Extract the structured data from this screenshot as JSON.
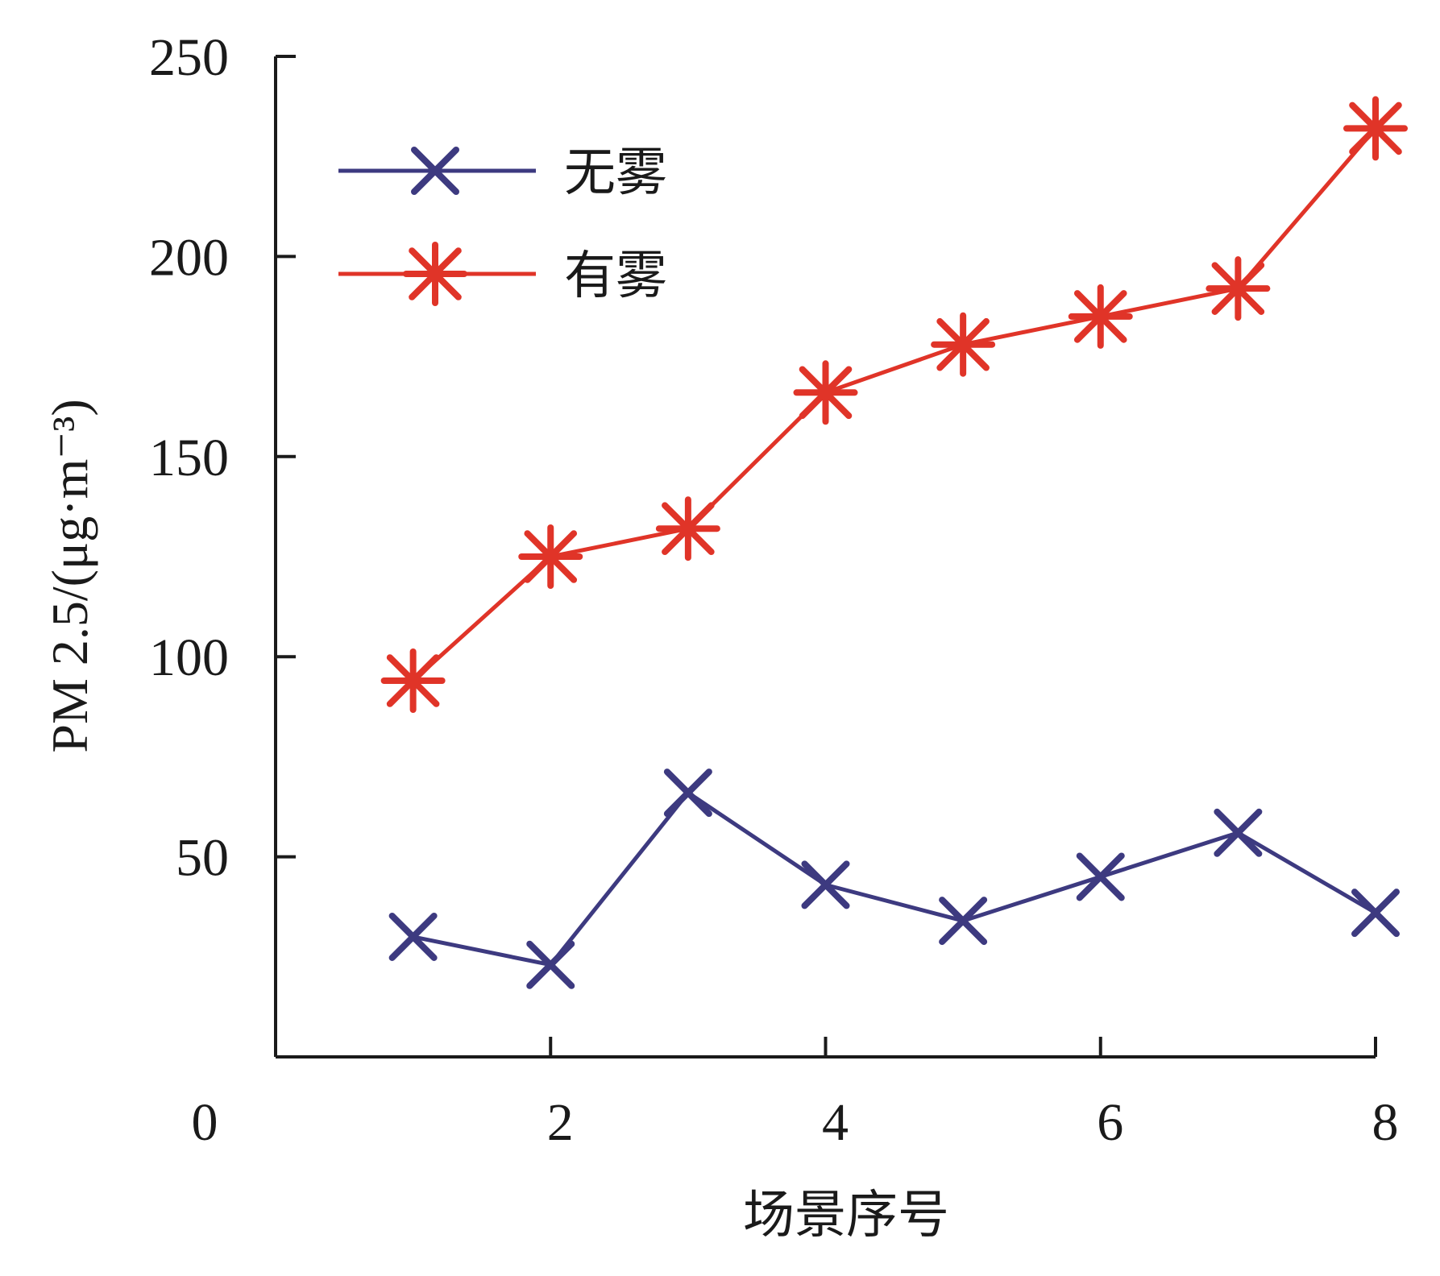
{
  "chart_data": {
    "type": "line",
    "xlabel": "场景序号",
    "ylabel": "PM 2.5/(μg·m⁻³)",
    "xlim": [
      0,
      8
    ],
    "ylim": [
      0,
      250
    ],
    "x_ticks": [
      "0",
      "2",
      "4",
      "6",
      "8"
    ],
    "y_ticks": [
      "50",
      "100",
      "150",
      "200",
      "250"
    ],
    "grid": false,
    "legend_position": "top-left",
    "series": [
      {
        "name": "无雾",
        "color": "#3d3a80",
        "marker": "x",
        "x": [
          1,
          2,
          3,
          4,
          5,
          6,
          7,
          8
        ],
        "values": [
          30,
          23,
          66,
          43,
          34,
          45,
          56,
          36
        ]
      },
      {
        "name": "有雾",
        "color": "#e03428",
        "marker": "asterisk",
        "x": [
          1,
          2,
          3,
          4,
          5,
          6,
          7,
          8
        ],
        "values": [
          94,
          125,
          132,
          166,
          178,
          185,
          192,
          232
        ]
      }
    ]
  }
}
